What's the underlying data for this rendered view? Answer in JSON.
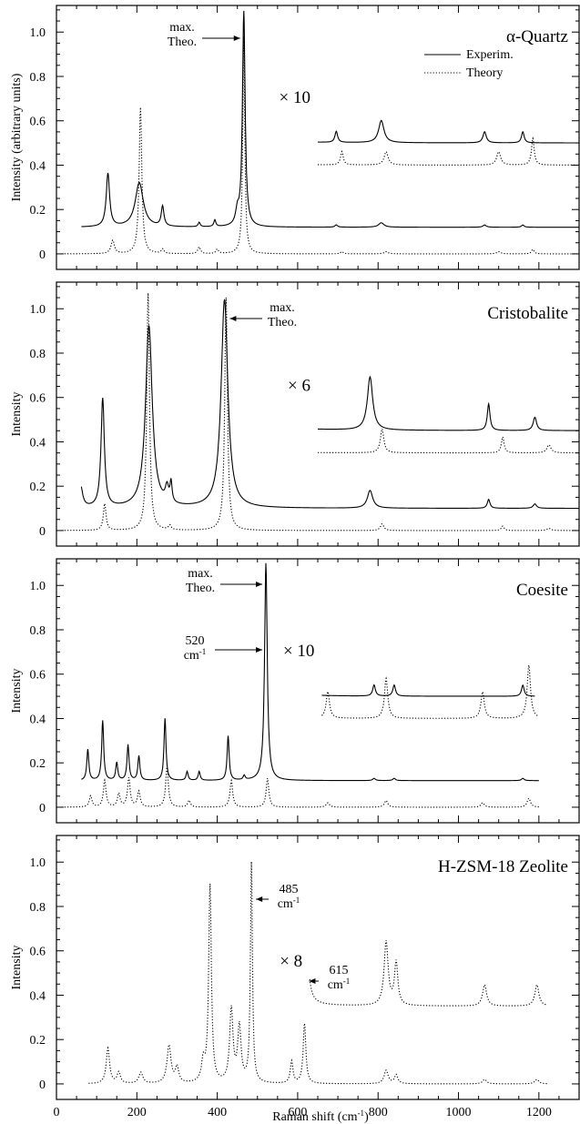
{
  "figure": {
    "x_axis_label": "Raman shift (cm",
    "x_axis_label_sup": "-1",
    "x_axis_label_end": ")",
    "x_ticks": [
      "0",
      "200",
      "400",
      "600",
      "800",
      "1000",
      "1200"
    ],
    "y_ticks": [
      "0",
      "0.2",
      "0.4",
      "0.6",
      "0.8",
      "1.0"
    ]
  },
  "chart_data": [
    {
      "type": "line",
      "title": "α-Quartz",
      "ylabel": "Intensity (arbitrary units)",
      "xlim": [
        0,
        1300
      ],
      "ylim": [
        -0.07,
        1.12
      ],
      "legend": [
        {
          "name": "Experim.",
          "style": "solid"
        },
        {
          "name": "Theory",
          "style": "dotted"
        }
      ],
      "annotations": [
        {
          "lines": [
            "max.",
            "Theo."
          ],
          "points_to_x": 466
        }
      ],
      "inset": {
        "label": "× 10",
        "from_x": 650,
        "experiment_baseline": 0.5,
        "theory_baseline": 0.4
      },
      "experiment": {
        "start": 62,
        "end": 1300,
        "baseline": 0.12,
        "peaks": [
          [
            128,
            0.24,
            5
          ],
          [
            206,
            0.2,
            12
          ],
          [
            264,
            0.09,
            4
          ],
          [
            355,
            0.02,
            3
          ],
          [
            394,
            0.03,
            3
          ],
          [
            450,
            0.06,
            5
          ],
          [
            466,
            0.97,
            4
          ],
          [
            696,
            0.01,
            4
          ],
          [
            808,
            0.02,
            8
          ],
          [
            1065,
            0.01,
            5
          ],
          [
            1160,
            0.01,
            4
          ]
        ]
      },
      "theory": {
        "start": 20,
        "end": 1300,
        "baseline": 0,
        "peaks": [
          [
            140,
            0.06,
            5
          ],
          [
            209,
            0.66,
            4
          ],
          [
            264,
            0.02,
            4
          ],
          [
            355,
            0.03,
            4
          ],
          [
            400,
            0.02,
            4
          ],
          [
            466,
            0.98,
            3
          ],
          [
            710,
            0.01,
            4
          ],
          [
            820,
            0.01,
            6
          ],
          [
            1100,
            0.01,
            6
          ],
          [
            1185,
            0.02,
            4
          ]
        ]
      }
    },
    {
      "type": "line",
      "title": "Cristobalite",
      "ylabel": "Intensity",
      "xlim": [
        0,
        1300
      ],
      "ylim": [
        -0.07,
        1.12
      ],
      "annotations": [
        {
          "lines": [
            "max.",
            "Theo."
          ],
          "points_to_x": 420
        }
      ],
      "inset": {
        "label": "× 6",
        "from_x": 650,
        "experiment_baseline": 0.45,
        "theory_baseline": 0.35
      },
      "experiment": {
        "start": 62,
        "end": 1300,
        "baseline": 0.1,
        "peaks": [
          [
            60,
            0.1,
            6
          ],
          [
            115,
            0.49,
            5
          ],
          [
            230,
            0.82,
            10
          ],
          [
            275,
            0.07,
            5
          ],
          [
            285,
            0.09,
            3
          ],
          [
            418,
            0.94,
            10
          ],
          [
            780,
            0.08,
            8
          ],
          [
            1075,
            0.04,
            4
          ],
          [
            1190,
            0.02,
            5
          ]
        ]
      },
      "theory": {
        "start": 20,
        "end": 1300,
        "baseline": 0,
        "peaks": [
          [
            120,
            0.12,
            4
          ],
          [
            228,
            1.07,
            4
          ],
          [
            282,
            0.02,
            4
          ],
          [
            422,
            1.05,
            4
          ],
          [
            810,
            0.03,
            5
          ],
          [
            1110,
            0.02,
            4
          ],
          [
            1225,
            0.01,
            6
          ]
        ]
      }
    },
    {
      "type": "line",
      "title": "Coesite",
      "ylabel": "Intensity",
      "xlim": [
        0,
        1300
      ],
      "ylim": [
        -0.07,
        1.12
      ],
      "annotations": [
        {
          "lines": [
            "max.",
            "Theo."
          ],
          "points_to_x": 521
        },
        {
          "lines": [
            "520",
            "cm-1"
          ],
          "points_to_x": 521
        }
      ],
      "inset": {
        "label": "× 10",
        "from_x": 660,
        "experiment_baseline": 0.5,
        "theory_baseline": 0.4
      },
      "experiment": {
        "start": 62,
        "end": 1200,
        "baseline": 0.12,
        "peaks": [
          [
            78,
            0.14,
            3
          ],
          [
            115,
            0.27,
            3
          ],
          [
            150,
            0.08,
            3
          ],
          [
            178,
            0.16,
            3
          ],
          [
            205,
            0.11,
            3
          ],
          [
            270,
            0.28,
            3
          ],
          [
            325,
            0.04,
            3
          ],
          [
            355,
            0.04,
            3
          ],
          [
            427,
            0.2,
            3
          ],
          [
            467,
            0.02,
            3
          ],
          [
            521,
            0.98,
            4
          ],
          [
            790,
            0.01,
            4
          ],
          [
            840,
            0.01,
            4
          ],
          [
            1160,
            0.01,
            4
          ]
        ]
      },
      "theory": {
        "start": 20,
        "end": 1200,
        "baseline": 0,
        "peaks": [
          [
            85,
            0.05,
            4
          ],
          [
            120,
            0.12,
            4
          ],
          [
            155,
            0.06,
            4
          ],
          [
            180,
            0.13,
            4
          ],
          [
            205,
            0.07,
            4
          ],
          [
            275,
            0.18,
            4
          ],
          [
            330,
            0.03,
            4
          ],
          [
            435,
            0.12,
            4
          ],
          [
            525,
            0.13,
            4
          ],
          [
            675,
            0.02,
            5
          ],
          [
            820,
            0.03,
            5
          ],
          [
            1060,
            0.02,
            5
          ],
          [
            1175,
            0.04,
            5
          ]
        ]
      }
    },
    {
      "type": "line",
      "title": "H-ZSM-18 Zeolite",
      "ylabel": "Intensity",
      "xlim": [
        0,
        1300
      ],
      "ylim": [
        -0.07,
        1.12
      ],
      "annotations": [
        {
          "lines": [
            "485",
            "cm-1"
          ],
          "points_to_x": 485
        },
        {
          "lines": [
            "615",
            "cm-1"
          ],
          "points_to_x": 617
        }
      ],
      "inset": {
        "label": "× 8",
        "from_x": 630,
        "theory_baseline": 0.35
      },
      "theory": {
        "start": 80,
        "end": 1220,
        "baseline": 0,
        "peaks": [
          [
            128,
            0.16,
            5
          ],
          [
            155,
            0.05,
            5
          ],
          [
            210,
            0.05,
            6
          ],
          [
            280,
            0.17,
            6
          ],
          [
            300,
            0.07,
            5
          ],
          [
            365,
            0.09,
            5
          ],
          [
            382,
            0.89,
            4
          ],
          [
            435,
            0.33,
            5
          ],
          [
            455,
            0.25,
            5
          ],
          [
            485,
            0.99,
            3
          ],
          [
            585,
            0.1,
            4
          ],
          [
            617,
            0.27,
            4
          ],
          [
            820,
            0.06,
            6
          ],
          [
            845,
            0.04,
            5
          ],
          [
            1065,
            0.02,
            6
          ],
          [
            1195,
            0.02,
            6
          ]
        ]
      }
    }
  ]
}
